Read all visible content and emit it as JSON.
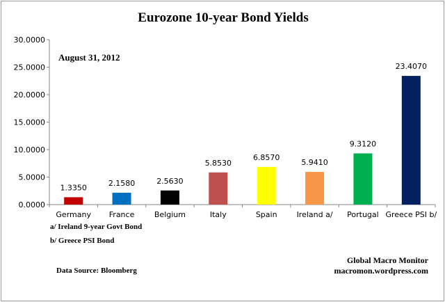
{
  "chart_data": {
    "type": "bar",
    "title": "Eurozone 10-year Bond Yields",
    "subtitle": "August 31, 2012",
    "categories": [
      "Germany",
      "France",
      "Belgium",
      "Italy",
      "Spain",
      "Ireland  a/",
      "Portugal",
      "Greece PSI b/"
    ],
    "values": [
      1.335,
      2.158,
      2.563,
      5.853,
      6.857,
      5.941,
      9.312,
      23.407
    ],
    "value_labels": [
      "1.3350",
      "2.1580",
      "2.5630",
      "5.8530",
      "6.8570",
      "5.9410",
      "9.3120",
      "23.4070"
    ],
    "colors": [
      "#c00000",
      "#0070c0",
      "#000000",
      "#c0504d",
      "#ffff00",
      "#f79646",
      "#00b050",
      "#002060"
    ],
    "ylim": [
      0,
      30
    ],
    "yticks": [
      "0.0000",
      "5.0000",
      "10.0000",
      "15.0000",
      "20.0000",
      "25.0000",
      "30.0000"
    ],
    "ytick_values": [
      0,
      5,
      10,
      15,
      20,
      25,
      30
    ],
    "grid": false,
    "legend": "none",
    "xlabel": "",
    "ylabel": ""
  },
  "notes": {
    "footnote_a": "a/  Ireland 9-year Govt Bond",
    "footnote_b": "b/  Greece PSI Bond",
    "source": "Data Source:  Bloomberg",
    "credit_name": "Global Macro Monitor",
    "credit_url": "macromon.wordpress.com"
  }
}
